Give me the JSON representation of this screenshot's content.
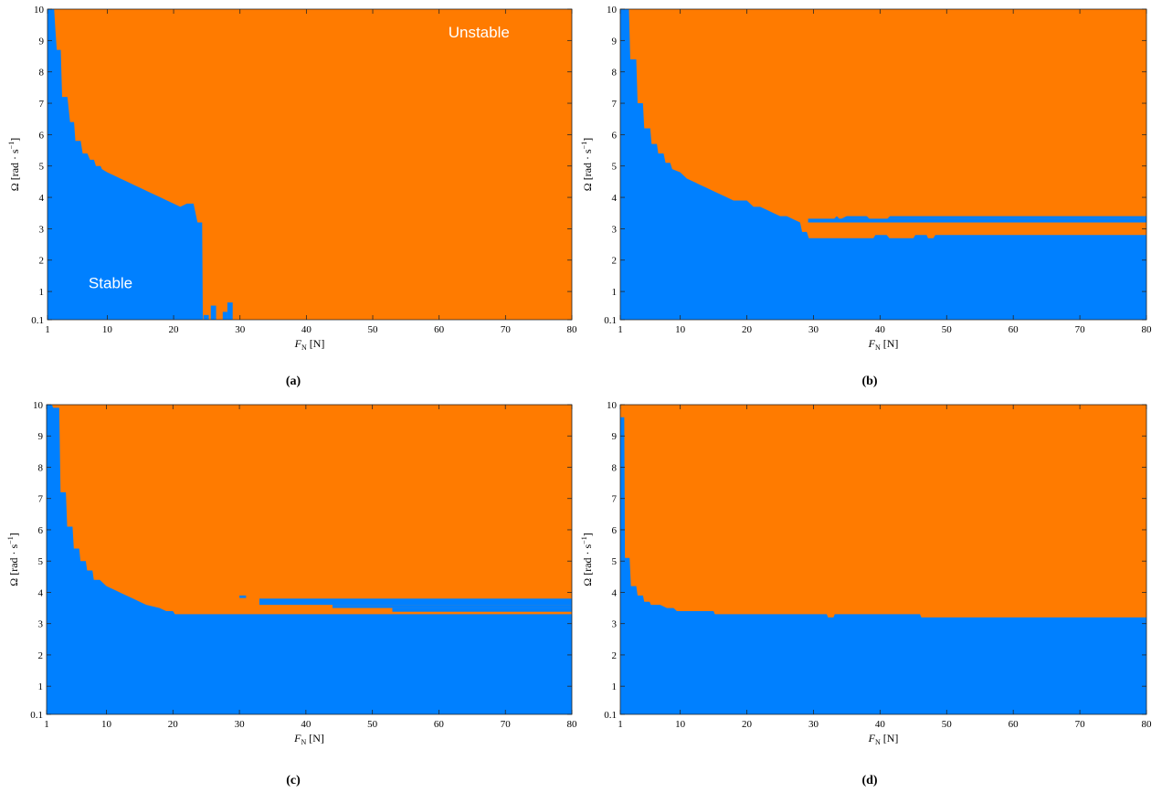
{
  "colors": {
    "stable": "#0080ff",
    "unstable": "#ff7b00",
    "axis": "#262626"
  },
  "chart_data": [
    {
      "id": "a",
      "caption": "(a)",
      "type": "heatmap",
      "xlabel_symbol": "F",
      "xlabel_sub": "N",
      "xlabel_unit": " [N]",
      "ylabel": "Ω [rad · s",
      "ylabel_sup": "−1",
      "ylabel_end": "]",
      "xlim": [
        1,
        80
      ],
      "ylim": [
        0.1,
        10
      ],
      "xticks": [
        1,
        10,
        20,
        30,
        40,
        50,
        60,
        70,
        80
      ],
      "yticks": [
        0.1,
        1,
        2,
        3,
        4,
        5,
        6,
        7,
        8,
        9,
        10
      ],
      "annotations": {
        "upper": "Unstable",
        "lower": "Stable"
      },
      "boundary_lower": [],
      "boundary": [
        [
          1,
          10
        ],
        [
          2,
          10
        ],
        [
          2.2,
          9.3
        ],
        [
          2.4,
          8.7
        ],
        [
          3,
          8.7
        ],
        [
          3.2,
          7.2
        ],
        [
          4,
          7.2
        ],
        [
          4.4,
          6.4
        ],
        [
          5,
          6.4
        ],
        [
          5.2,
          5.8
        ],
        [
          6,
          5.8
        ],
        [
          6.3,
          5.4
        ],
        [
          7,
          5.4
        ],
        [
          7.4,
          5.2
        ],
        [
          8,
          5.2
        ],
        [
          8.3,
          5
        ],
        [
          9,
          5
        ],
        [
          9.2,
          4.9
        ],
        [
          10,
          4.8
        ],
        [
          11,
          4.7
        ],
        [
          12,
          4.6
        ],
        [
          13,
          4.5
        ],
        [
          14,
          4.4
        ],
        [
          15,
          4.3
        ],
        [
          16,
          4.2
        ],
        [
          17,
          4.1
        ],
        [
          18,
          4
        ],
        [
          19,
          3.9
        ],
        [
          20,
          3.8
        ],
        [
          21,
          3.7
        ],
        [
          22,
          3.8
        ],
        [
          23,
          3.8
        ],
        [
          23.6,
          3.2
        ],
        [
          24.3,
          3.2
        ],
        [
          24.4,
          0.1
        ],
        [
          80,
          0.1
        ]
      ],
      "stable_islands": [
        [
          24.5,
          25.3,
          0.1,
          0.25
        ],
        [
          25.6,
          26.4,
          0.1,
          0.55
        ],
        [
          27.4,
          28.1,
          0.1,
          0.35
        ],
        [
          28.1,
          28.9,
          0.1,
          0.65
        ]
      ]
    },
    {
      "id": "b",
      "caption": "(b)",
      "type": "heatmap",
      "xlabel_symbol": "F",
      "xlabel_sub": "N",
      "xlabel_unit": " [N]",
      "ylabel": "Ω [rad · s",
      "ylabel_sup": "−1",
      "ylabel_end": "]",
      "xlim": [
        1,
        80
      ],
      "ylim": [
        0.1,
        10
      ],
      "xticks": [
        1,
        10,
        20,
        30,
        40,
        50,
        60,
        70,
        80
      ],
      "yticks": [
        0.1,
        1,
        2,
        3,
        4,
        5,
        6,
        7,
        8,
        9,
        10
      ],
      "boundary": [
        [
          1,
          10
        ],
        [
          2,
          10
        ],
        [
          2.3,
          10
        ],
        [
          2.5,
          8.4
        ],
        [
          3.4,
          8.4
        ],
        [
          3.6,
          7
        ],
        [
          4.4,
          7
        ],
        [
          4.6,
          6.2
        ],
        [
          5.5,
          6.2
        ],
        [
          5.7,
          5.7
        ],
        [
          6.5,
          5.7
        ],
        [
          6.7,
          5.4
        ],
        [
          7.5,
          5.4
        ],
        [
          7.8,
          5.1
        ],
        [
          8.5,
          5.1
        ],
        [
          8.8,
          4.9
        ],
        [
          10,
          4.8
        ],
        [
          11,
          4.6
        ],
        [
          12,
          4.5
        ],
        [
          13,
          4.4
        ],
        [
          14,
          4.3
        ],
        [
          15,
          4.2
        ],
        [
          16,
          4.1
        ],
        [
          17,
          4
        ],
        [
          18,
          3.9
        ],
        [
          20,
          3.9
        ],
        [
          21,
          3.7
        ],
        [
          22,
          3.7
        ],
        [
          23,
          3.6
        ],
        [
          24,
          3.5
        ],
        [
          25,
          3.4
        ],
        [
          26,
          3.4
        ],
        [
          27,
          3.3
        ],
        [
          28,
          3.2
        ],
        [
          30,
          3.2
        ],
        [
          30.5,
          3.3
        ],
        [
          33,
          3.3
        ],
        [
          33.5,
          3.4
        ],
        [
          34,
          3.3
        ],
        [
          35,
          3.4
        ],
        [
          38,
          3.4
        ],
        [
          38.5,
          3.3
        ],
        [
          41,
          3.3
        ],
        [
          41.5,
          3.4
        ],
        [
          80,
          3.4
        ]
      ],
      "boundary_lower": [
        [
          28,
          3.2
        ],
        [
          28.3,
          2.9
        ],
        [
          29,
          2.9
        ],
        [
          29.3,
          2.7
        ],
        [
          39,
          2.7
        ],
        [
          39.3,
          2.8
        ],
        [
          41,
          2.8
        ],
        [
          41.4,
          2.7
        ],
        [
          45,
          2.7
        ],
        [
          45.3,
          2.8
        ],
        [
          47,
          2.8
        ],
        [
          47.2,
          2.7
        ],
        [
          48,
          2.7
        ],
        [
          48.3,
          2.8
        ],
        [
          80,
          2.8
        ]
      ],
      "stable_islands": [
        [
          29.2,
          80,
          3.2,
          3.32
        ]
      ]
    },
    {
      "id": "c",
      "caption": "(c)",
      "type": "heatmap",
      "xlabel_symbol": "F",
      "xlabel_sub": "N",
      "xlabel_unit": " [N]",
      "ylabel": "Ω [rad · s",
      "ylabel_sup": "−1",
      "ylabel_end": "]",
      "xlim": [
        1,
        80
      ],
      "ylim": [
        0.1,
        10
      ],
      "xticks": [
        1,
        10,
        20,
        30,
        40,
        50,
        60,
        70,
        80
      ],
      "yticks": [
        0.1,
        1,
        2,
        3,
        4,
        5,
        6,
        7,
        8,
        9,
        10
      ],
      "boundary": [
        [
          1,
          10
        ],
        [
          1.8,
          10
        ],
        [
          2,
          9.9
        ],
        [
          2.9,
          9.9
        ],
        [
          3.1,
          7.2
        ],
        [
          3.9,
          7.2
        ],
        [
          4.1,
          6.1
        ],
        [
          4.9,
          6.1
        ],
        [
          5.1,
          5.4
        ],
        [
          5.9,
          5.4
        ],
        [
          6.1,
          5
        ],
        [
          6.9,
          5
        ],
        [
          7.1,
          4.7
        ],
        [
          7.9,
          4.7
        ],
        [
          8.1,
          4.4
        ],
        [
          9,
          4.4
        ],
        [
          10,
          4.2
        ],
        [
          11,
          4.1
        ],
        [
          12,
          4
        ],
        [
          13,
          3.9
        ],
        [
          14,
          3.8
        ],
        [
          15,
          3.7
        ],
        [
          16,
          3.6
        ],
        [
          18,
          3.5
        ],
        [
          19,
          3.4
        ],
        [
          20,
          3.4
        ],
        [
          20.3,
          3.3
        ],
        [
          80,
          3.3
        ]
      ],
      "boundary_lower": [],
      "stable_islands": [
        [
          30,
          31,
          3.82,
          3.9
        ],
        [
          33,
          80,
          3.6,
          3.8
        ],
        [
          44,
          80,
          3.5,
          3.6
        ],
        [
          53,
          80,
          3.38,
          3.5
        ]
      ]
    },
    {
      "id": "d",
      "caption": "(d)",
      "type": "heatmap",
      "xlabel_symbol": "F",
      "xlabel_sub": "N",
      "xlabel_unit": " [N]",
      "ylabel": "Ω [rad · s",
      "ylabel_sup": "−1",
      "ylabel_end": "]",
      "xlim": [
        1,
        80
      ],
      "ylim": [
        0.1,
        10
      ],
      "xticks": [
        1,
        10,
        20,
        30,
        40,
        50,
        60,
        70,
        80
      ],
      "yticks": [
        0.1,
        1,
        2,
        3,
        4,
        5,
        6,
        7,
        8,
        9,
        10
      ],
      "boundary": [
        [
          1,
          9.6
        ],
        [
          1.6,
          9.6
        ],
        [
          1.7,
          5.1
        ],
        [
          2.4,
          5.1
        ],
        [
          2.6,
          4.2
        ],
        [
          3.4,
          4.2
        ],
        [
          3.6,
          3.9
        ],
        [
          4.4,
          3.9
        ],
        [
          4.6,
          3.7
        ],
        [
          5.4,
          3.7
        ],
        [
          5.6,
          3.6
        ],
        [
          7,
          3.6
        ],
        [
          8,
          3.5
        ],
        [
          9,
          3.5
        ],
        [
          9.5,
          3.4
        ],
        [
          15,
          3.4
        ],
        [
          15.2,
          3.3
        ],
        [
          32,
          3.3
        ],
        [
          32.2,
          3.2
        ],
        [
          33,
          3.2
        ],
        [
          33.2,
          3.3
        ],
        [
          46,
          3.3
        ],
        [
          46.2,
          3.2
        ],
        [
          80,
          3.2
        ]
      ],
      "boundary_lower": [],
      "stable_islands": []
    }
  ]
}
